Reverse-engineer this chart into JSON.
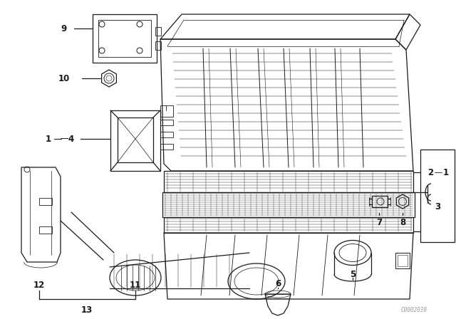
{
  "bg_color": "#ffffff",
  "line_color": "#1a1a1a",
  "fig_width": 6.4,
  "fig_height": 4.48,
  "dpi": 100,
  "watermark": "C0002039"
}
